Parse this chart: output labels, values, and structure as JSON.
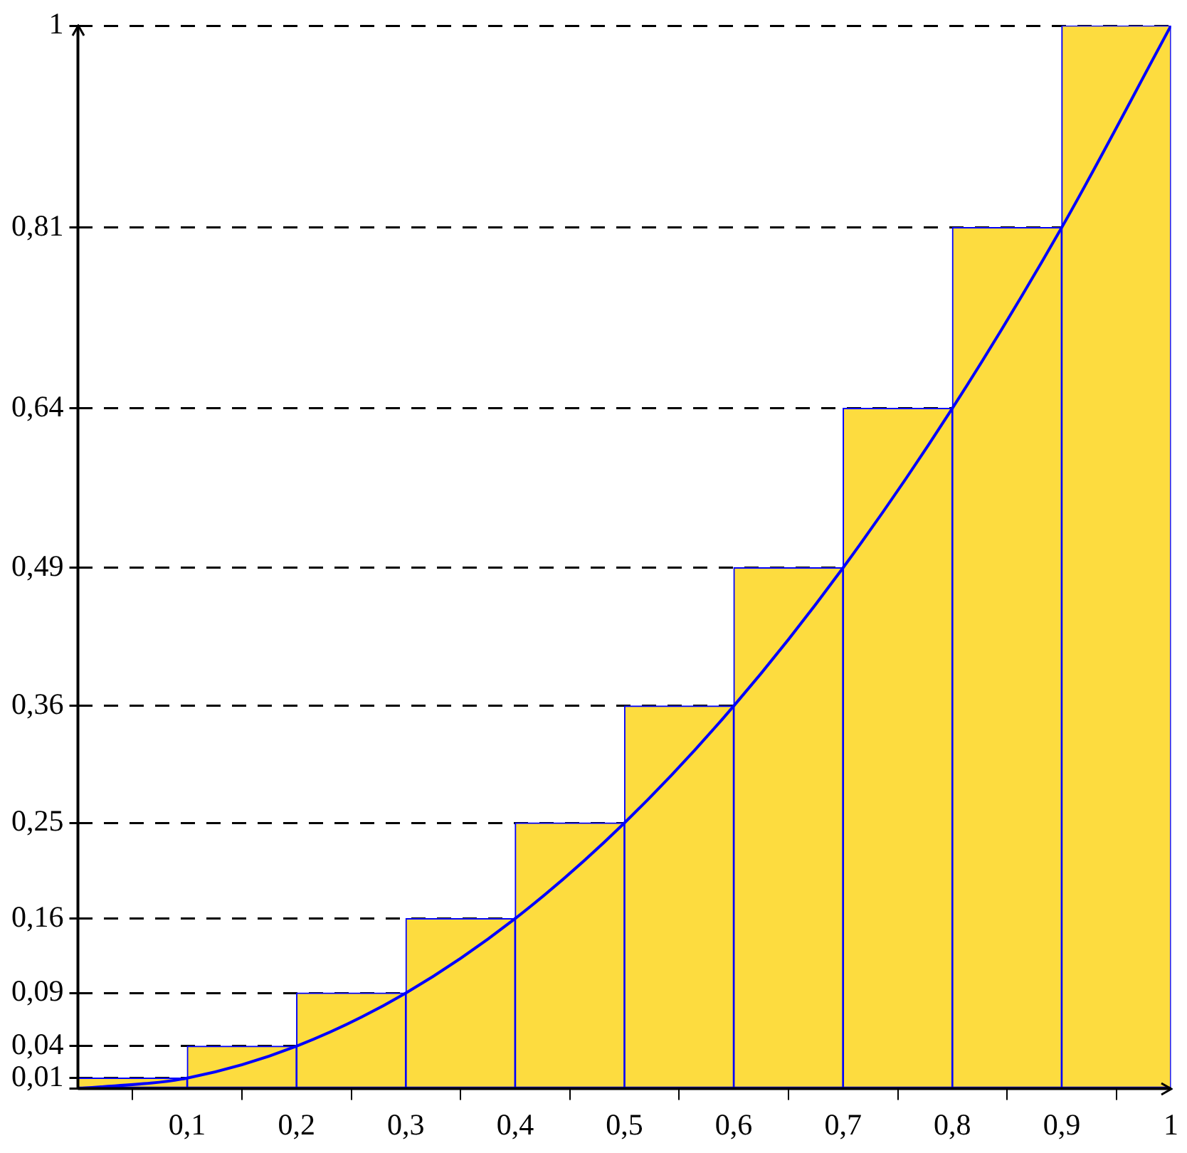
{
  "chart_data": {
    "type": "histogram",
    "bins": [
      0,
      0.1,
      0.2,
      0.3,
      0.4,
      0.5,
      0.6,
      0.7,
      0.8,
      0.9,
      1
    ],
    "values": [
      0.01,
      0.04,
      0.09,
      0.16,
      0.25,
      0.36,
      0.49,
      0.64,
      0.81,
      1
    ],
    "color": "#fddc3f",
    "series": [
      {
        "type": "line",
        "color": "#0000ff",
        "x": [
          0,
          0.1,
          0.2,
          0.3,
          0.4,
          0.5,
          0.6,
          0.7,
          0.8,
          0.9,
          1
        ],
        "values": [
          0,
          0.01,
          0.04,
          0.09,
          0.16,
          0.25,
          0.36,
          0.49,
          0.64,
          0.81,
          1
        ]
      }
    ],
    "xlim": [
      0,
      1
    ],
    "xticks": [
      {
        "value": 0,
        "label": null
      },
      {
        "value": 0.1,
        "label": "0,1"
      },
      {
        "value": 0.2,
        "label": "0,2"
      },
      {
        "value": 0.3,
        "label": "0,3"
      },
      {
        "value": 0.4,
        "label": "0,4"
      },
      {
        "value": 0.5,
        "label": "0,5"
      },
      {
        "value": 0.6,
        "label": "0,6"
      },
      {
        "value": 0.7,
        "label": "0,7"
      },
      {
        "value": 0.8,
        "label": "0,8"
      },
      {
        "value": 0.9,
        "label": "0,9"
      },
      1
    ],
    "ylim": [
      0,
      1
    ],
    "yticks": [
      {
        "value": 0,
        "label": null
      },
      {
        "value": 0.01,
        "label": "0,01"
      },
      {
        "value": 0.04,
        "label": "0,04"
      },
      {
        "value": 0.09,
        "label": "0,09"
      },
      {
        "value": 0.16,
        "label": "0,16"
      },
      {
        "value": 0.25,
        "label": "0,25"
      },
      {
        "value": 0.36,
        "label": "0,36"
      },
      {
        "value": 0.49,
        "label": "0,49"
      },
      {
        "value": 0.64,
        "label": "0,64"
      },
      {
        "value": 0.81,
        "label": "0,81"
      },
      1
    ],
    "grid": "y",
    "legend": false,
    "marker": "none"
  }
}
